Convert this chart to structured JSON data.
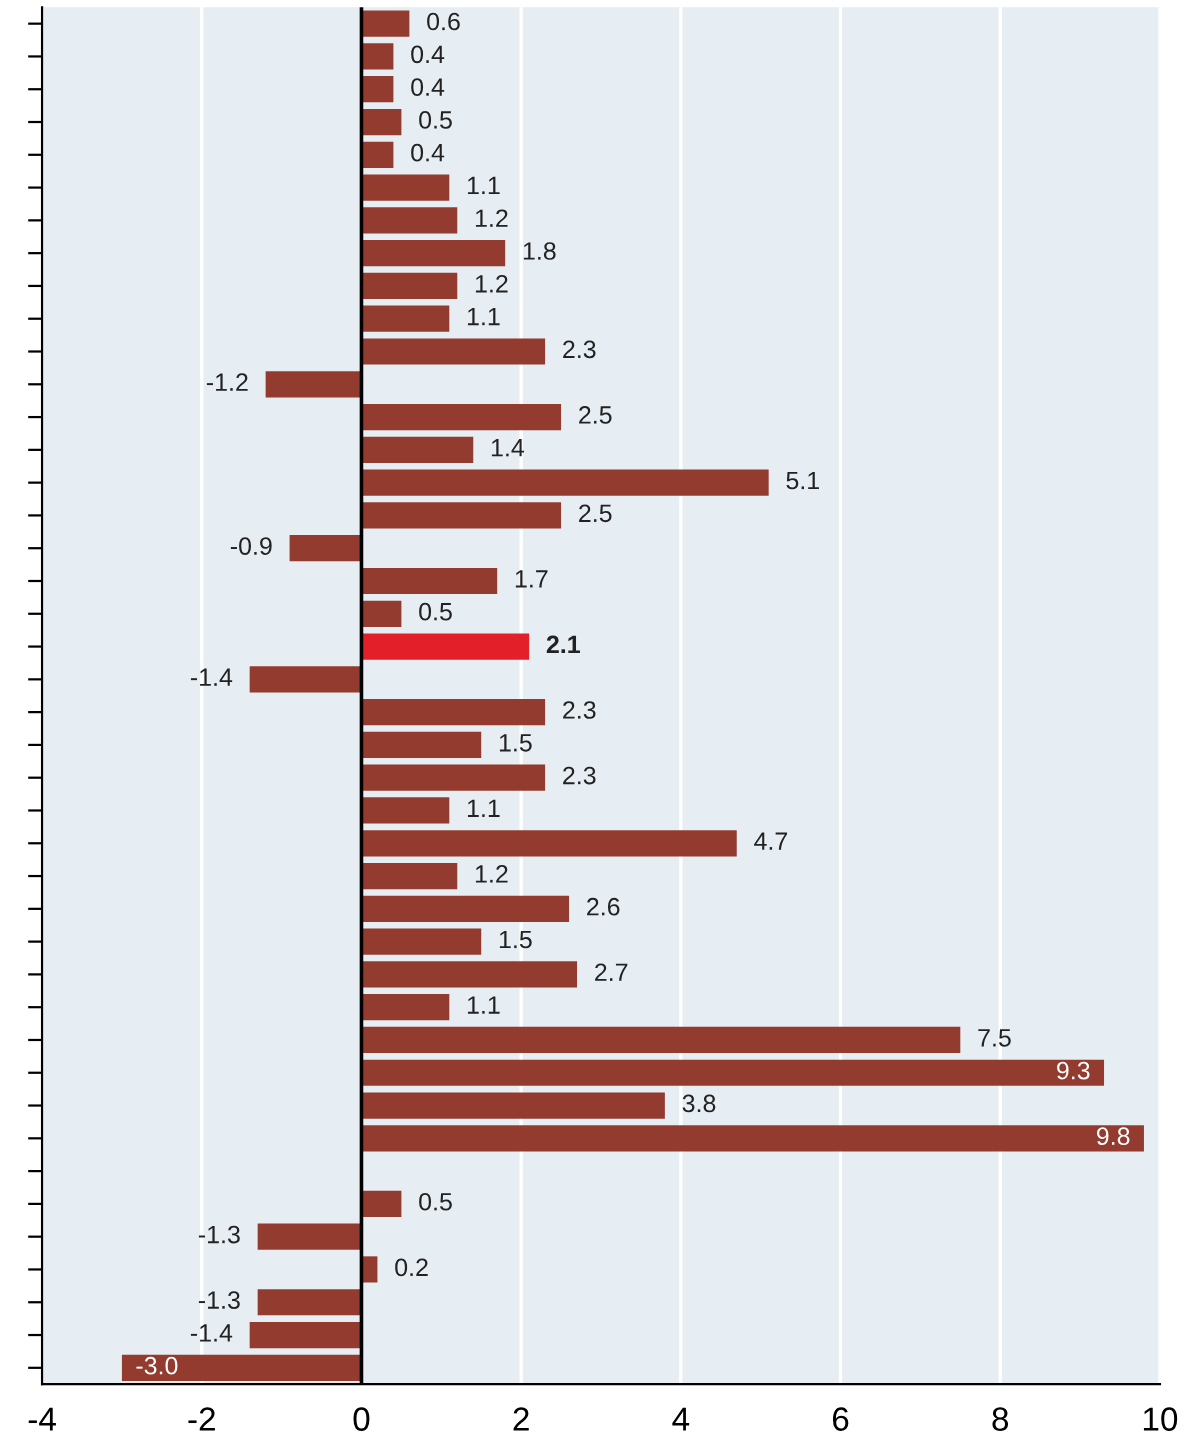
{
  "chart_data": {
    "type": "bar",
    "orientation": "horizontal",
    "grid": "x",
    "categories": [
      null,
      null,
      null,
      null,
      null,
      null,
      null,
      null,
      null,
      null,
      null,
      null,
      null,
      null,
      null,
      null,
      null,
      null,
      null,
      null,
      null,
      null,
      null,
      null,
      null,
      null,
      null,
      null,
      null,
      null,
      null,
      null,
      null,
      null,
      null,
      null,
      null,
      null,
      null,
      null,
      null,
      null
    ],
    "values": [
      0.6,
      0.4,
      0.4,
      0.5,
      0.4,
      1.1,
      1.2,
      1.8,
      1.2,
      1.1,
      2.3,
      -1.2,
      2.5,
      1.4,
      5.1,
      2.5,
      -0.9,
      1.7,
      0.5,
      2.1,
      -1.4,
      2.3,
      1.5,
      2.3,
      1.1,
      4.7,
      1.2,
      2.6,
      1.5,
      2.7,
      1.1,
      7.5,
      9.3,
      3.8,
      9.8,
      null,
      0.5,
      -1.3,
      0.2,
      -1.3,
      -1.4,
      -3.0
    ],
    "colors": [
      "#943b2f",
      "#943b2f",
      "#943b2f",
      "#943b2f",
      "#943b2f",
      "#943b2f",
      "#943b2f",
      "#943b2f",
      "#943b2f",
      "#943b2f",
      "#943b2f",
      "#943b2f",
      "#943b2f",
      "#943b2f",
      "#943b2f",
      "#943b2f",
      "#943b2f",
      "#943b2f",
      "#943b2f",
      "#e3202a",
      "#943b2f",
      "#943b2f",
      "#943b2f",
      "#943b2f",
      "#943b2f",
      "#943b2f",
      "#943b2f",
      "#943b2f",
      "#943b2f",
      "#943b2f",
      "#943b2f",
      "#943b2f",
      "#943b2f",
      "#943b2f",
      "#943b2f",
      "#943b2f",
      "#943b2f",
      "#943b2f",
      "#943b2f",
      "#943b2f",
      "#943b2f",
      "#943b2f"
    ],
    "value_labels": [
      "0.6",
      "0.4",
      "0.4",
      "0.5",
      "0.4",
      "1.1",
      "1.2",
      "1.8",
      "1.2",
      "1.1",
      "2.3",
      "-1.2",
      "2.5",
      "1.4",
      "5.1",
      "2.5",
      "-0.9",
      "1.7",
      "0.5",
      "2.1",
      "-1.4",
      "2.3",
      "1.5",
      "2.3",
      "1.1",
      "4.7",
      "1.2",
      "2.6",
      "1.5",
      "2.7",
      "1.1",
      "7.5",
      "9.3",
      "3.8",
      "9.8",
      null,
      "0.5",
      "-1.3",
      "0.2",
      "-1.3",
      "-1.4",
      "-3.0"
    ],
    "xlim": [
      -4,
      10
    ],
    "xticks": [
      -4,
      -2,
      0,
      2,
      4,
      6,
      8,
      10
    ],
    "ref_lines": [
      {
        "axis": "x",
        "value": 0,
        "color": "#000000"
      }
    ]
  }
}
